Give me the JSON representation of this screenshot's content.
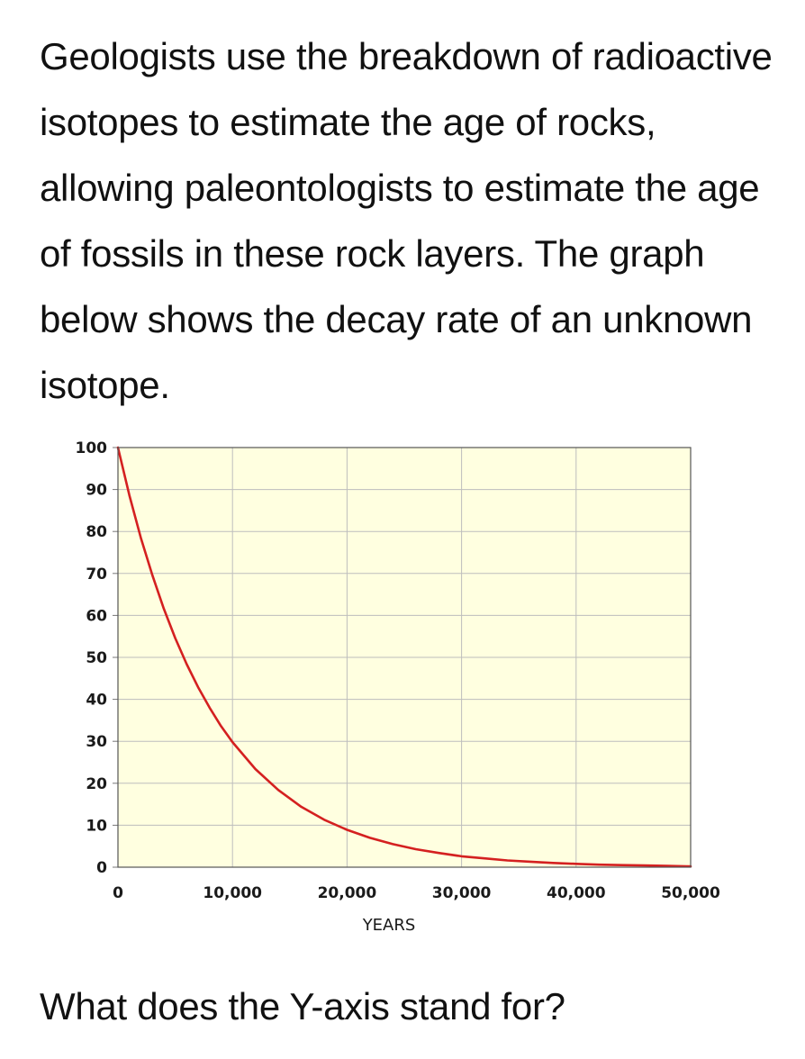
{
  "intro_text": "Geologists use the breakdown of radioactive isotopes to estimate the age of rocks, allowing paleontologists to estimate the age of fossils in these rock layers. The graph below shows the decay rate of an unknown isotope.",
  "question_text": "What does the Y-axis stand for?",
  "chart_data": {
    "type": "line",
    "title": "",
    "xlabel": "YEARS",
    "ylabel": "",
    "xlim": [
      0,
      50000
    ],
    "ylim": [
      0,
      100
    ],
    "x_ticks": [
      0,
      10000,
      20000,
      30000,
      40000,
      50000
    ],
    "x_tick_labels": [
      "0",
      "10,000",
      "20,000",
      "30,000",
      "40,000",
      "50,000"
    ],
    "y_ticks": [
      0,
      10,
      20,
      30,
      40,
      50,
      60,
      70,
      80,
      90,
      100
    ],
    "y_tick_labels": [
      "0",
      "10",
      "20",
      "30",
      "40",
      "50",
      "60",
      "70",
      "80",
      "90",
      "100"
    ],
    "grid": true,
    "plot_background": "#ffffe0",
    "grid_color": "#bdbdbd",
    "series": [
      {
        "color": "#d42020",
        "x": [
          0,
          1000,
          2000,
          3000,
          4000,
          5000,
          6000,
          7000,
          8000,
          9000,
          10000,
          12000,
          14000,
          16000,
          18000,
          20000,
          22000,
          24000,
          26000,
          28000,
          30000,
          32000,
          34000,
          36000,
          38000,
          40000,
          42000,
          44000,
          46000,
          48000,
          50000
        ],
        "y": [
          100,
          88.6,
          78.5,
          69.6,
          61.6,
          54.6,
          48.4,
          42.9,
          38.0,
          33.6,
          29.8,
          23.4,
          18.4,
          14.4,
          11.3,
          8.9,
          7.0,
          5.5,
          4.3,
          3.4,
          2.6,
          2.1,
          1.6,
          1.3,
          1.0,
          0.8,
          0.6,
          0.5,
          0.4,
          0.3,
          0.2
        ]
      }
    ]
  }
}
